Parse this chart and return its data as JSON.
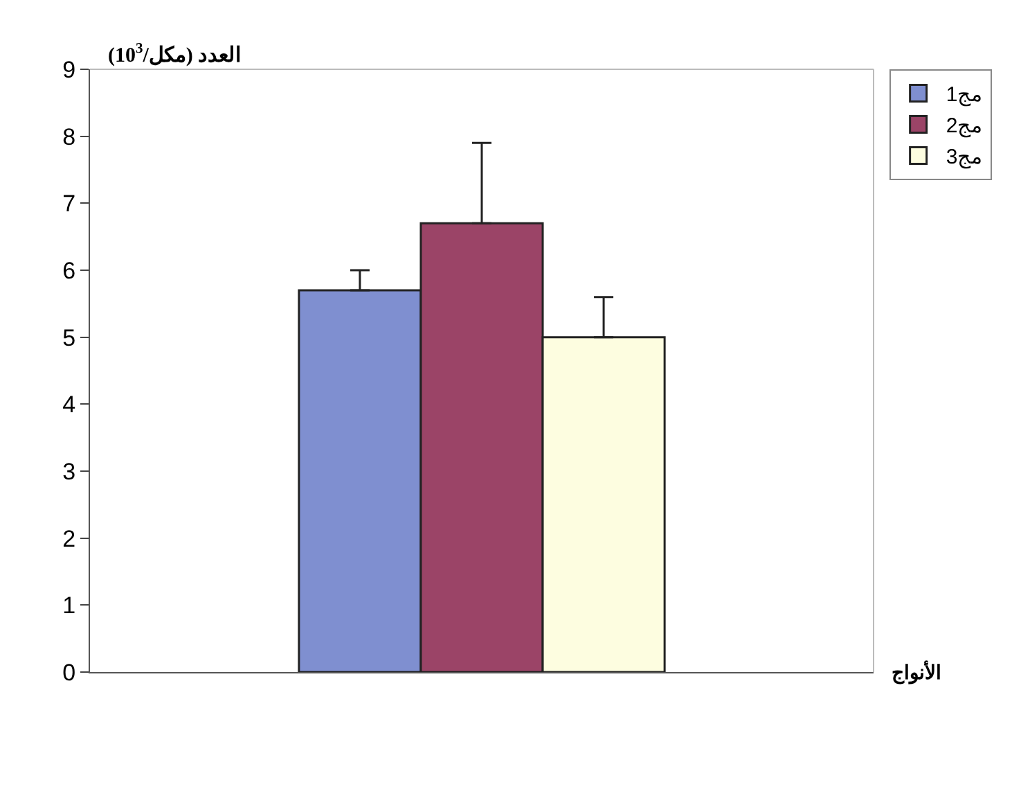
{
  "chart_data": {
    "type": "bar",
    "ylabel": "العدد (مكل/10$^{3}$)",
    "xlabel": "الأنواج",
    "categories": [
      null
    ],
    "series": [
      {
        "name": "مج1",
        "color": "#7f8fd0",
        "values": [
          5.7
        ],
        "errors": [
          0.3
        ]
      },
      {
        "name": "مج2",
        "color": "#9b4467",
        "values": [
          6.7
        ],
        "errors": [
          1.2
        ]
      },
      {
        "name": "مج3",
        "color": "#fdfde0",
        "values": [
          5.0
        ],
        "errors": [
          0.6
        ]
      }
    ],
    "ylim": [
      0,
      9
    ],
    "yticks": [
      0,
      1,
      2,
      3,
      4,
      5,
      6,
      7,
      8,
      9
    ],
    "grid": false,
    "legend": "top right"
  }
}
